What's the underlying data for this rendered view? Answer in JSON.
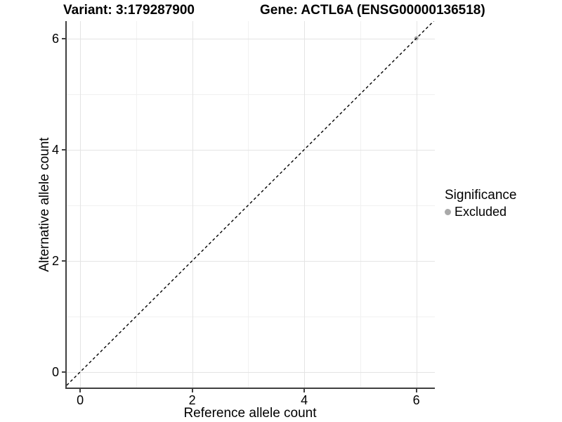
{
  "chart_data": {
    "type": "scatter",
    "titles": {
      "left": "Variant: 3:179287900",
      "right": "Gene: ACTL6A (ENSG00000136518)"
    },
    "xlabel": "Reference allele count",
    "ylabel": "Alternative allele count",
    "xlim": [
      -0.24,
      6.33
    ],
    "ylim": [
      -0.28,
      6.31
    ],
    "x_major_ticks": [
      0,
      2,
      4,
      6
    ],
    "y_major_ticks": [
      0,
      2,
      4,
      6
    ],
    "x_minor_ticks": [
      1,
      3,
      5
    ],
    "y_minor_ticks": [
      1,
      3,
      5
    ],
    "grid": "major and minor gridlines on white panel",
    "identity_line": {
      "slope": 1,
      "intercept": 0,
      "style": "dashed",
      "color": "#000000"
    },
    "series": [
      {
        "name": "Excluded",
        "color": "#a9a9a9",
        "points": [
          [
            6,
            6
          ]
        ]
      }
    ],
    "legend": {
      "title": "Significance",
      "position": "right",
      "items": [
        {
          "label": "Excluded",
          "color": "#a9a9a9"
        }
      ]
    }
  },
  "colors": {
    "background": "#ffffff",
    "axis_line": "#404040",
    "grid_major": "#e4e4e4",
    "grid_minor": "#f1f1f1",
    "point": "#a9a9a9",
    "text": "#000000"
  }
}
